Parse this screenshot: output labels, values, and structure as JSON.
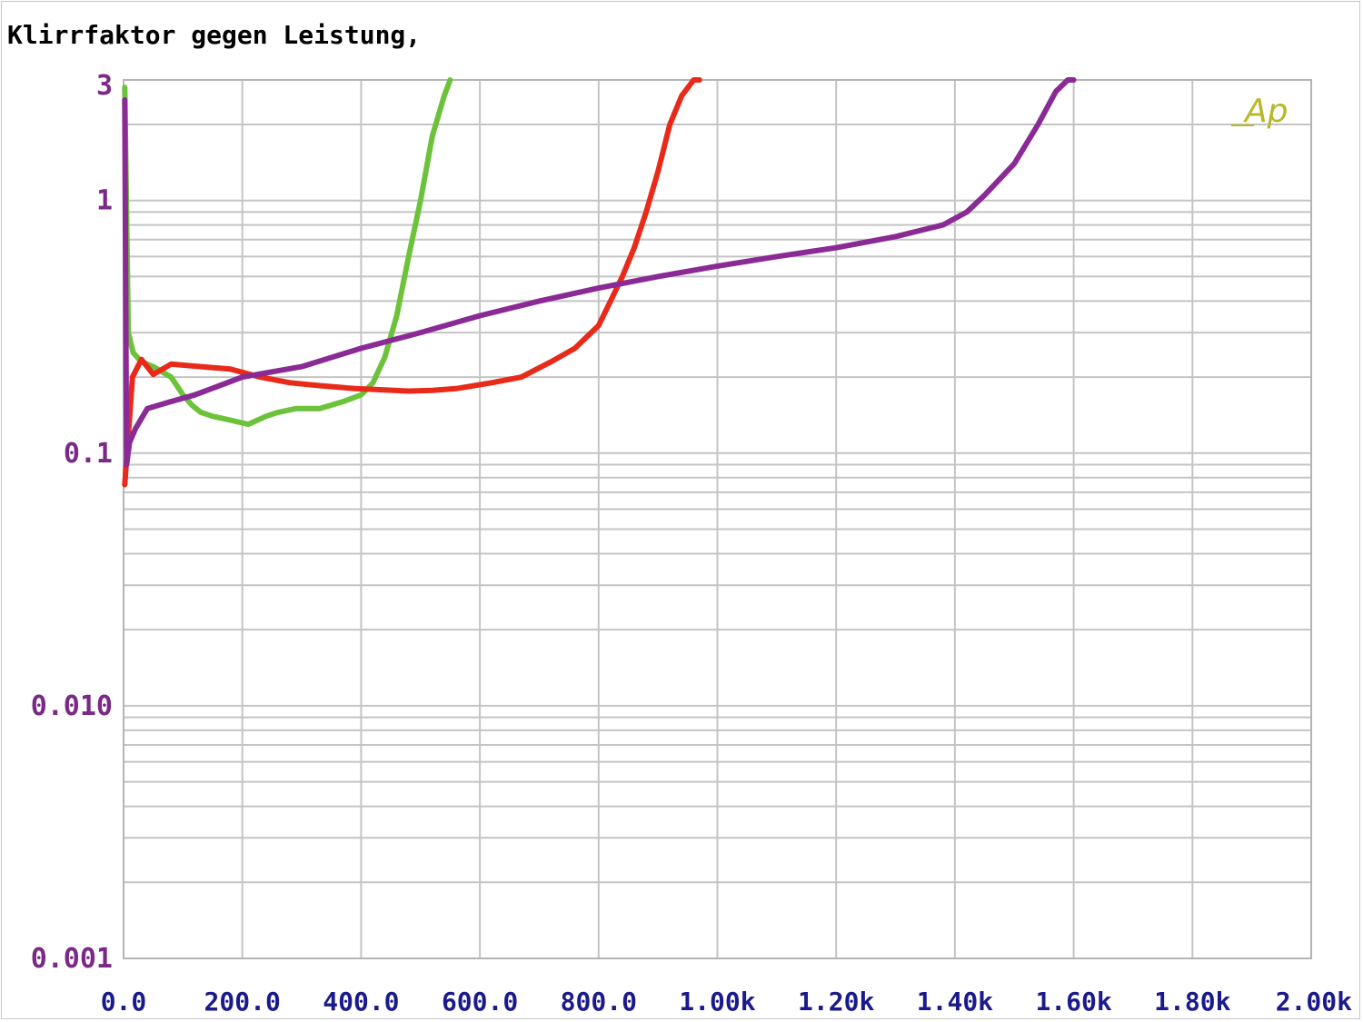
{
  "chart_data": {
    "type": "line",
    "title": "Klirrfaktor gegen Leistung,",
    "x_scale": "linear",
    "y_scale": "log",
    "xlim": [
      0,
      2000
    ],
    "ylim": [
      0.001,
      3
    ],
    "x_tick_values": [
      0,
      200,
      400,
      600,
      800,
      1000,
      1200,
      1400,
      1600,
      1800,
      2000
    ],
    "x_tick_labels": [
      "0.0",
      "200.0",
      "400.0",
      "600.0",
      "800.0",
      "1.00k",
      "1.20k",
      "1.40k",
      "1.60k",
      "1.80k",
      "2.00k"
    ],
    "y_tick_values": [
      3,
      1,
      0.1,
      0.01,
      0.001
    ],
    "y_tick_labels": [
      "3",
      "1",
      "0.1",
      "0.010",
      "0.001"
    ],
    "grid": true,
    "logo": "Ap",
    "series": [
      {
        "color": "#6cc23a",
        "x": [
          2,
          8,
          16,
          30,
          50,
          80,
          100,
          115,
          130,
          150,
          180,
          210,
          240,
          260,
          290,
          330,
          370,
          400,
          420,
          440,
          460,
          480,
          500,
          520,
          540,
          550
        ],
        "y": [
          2.8,
          0.3,
          0.25,
          0.23,
          0.22,
          0.2,
          0.17,
          0.155,
          0.145,
          0.14,
          0.135,
          0.13,
          0.14,
          0.145,
          0.15,
          0.15,
          0.16,
          0.17,
          0.19,
          0.24,
          0.35,
          0.6,
          1.0,
          1.8,
          2.6,
          3.0
        ]
      },
      {
        "color": "#e82a1a",
        "x": [
          2,
          15,
          30,
          50,
          80,
          130,
          180,
          230,
          280,
          330,
          390,
          440,
          480,
          520,
          560,
          620,
          670,
          720,
          760,
          800,
          820,
          840,
          860,
          880,
          900,
          920,
          940,
          960,
          970
        ],
        "y": [
          0.075,
          0.2,
          0.235,
          0.205,
          0.225,
          0.22,
          0.215,
          0.2,
          0.19,
          0.185,
          0.18,
          0.178,
          0.176,
          0.177,
          0.18,
          0.19,
          0.2,
          0.23,
          0.26,
          0.32,
          0.4,
          0.5,
          0.65,
          0.9,
          1.3,
          2.0,
          2.6,
          3.0,
          3.2
        ]
      },
      {
        "color": "#8a2a94",
        "x": [
          2,
          5,
          10,
          20,
          40,
          80,
          120,
          200,
          300,
          400,
          500,
          600,
          700,
          800,
          900,
          1000,
          1100,
          1200,
          1300,
          1380,
          1420,
          1450,
          1500,
          1540,
          1570,
          1590,
          1600
        ],
        "y": [
          2.5,
          0.09,
          0.11,
          0.125,
          0.15,
          0.16,
          0.17,
          0.2,
          0.22,
          0.26,
          0.3,
          0.35,
          0.4,
          0.45,
          0.5,
          0.55,
          0.6,
          0.65,
          0.72,
          0.8,
          0.9,
          1.05,
          1.4,
          2.0,
          2.7,
          3.0,
          3.2
        ]
      }
    ]
  }
}
